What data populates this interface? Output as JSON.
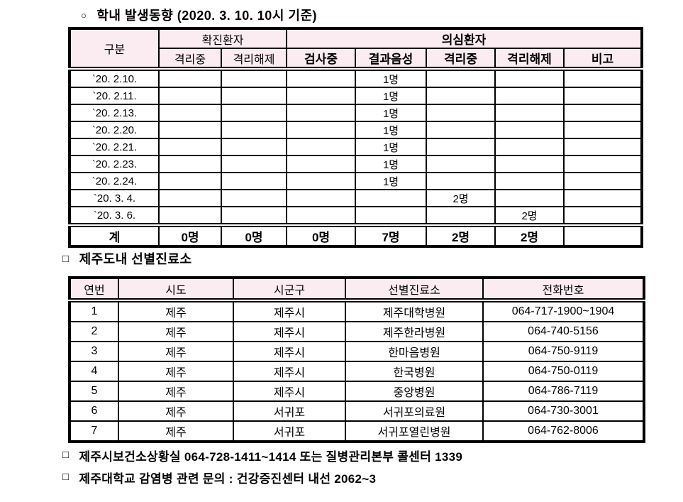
{
  "document": {
    "colors": {
      "header_bg": "#fbecf2",
      "border": "#000000",
      "text": "#000000",
      "page_bg": "#ffffff"
    },
    "section1": {
      "bullet": "○",
      "title": "학내 발생동향 (2020. 3. 10. 10시 기준)",
      "table": {
        "header": {
          "gubun": "구분",
          "confirmed_group": "확진환자",
          "suspected_group": "의심환자",
          "sub_headers": [
            "격리중",
            "격리해제",
            "검사중",
            "결과음성",
            "격리중",
            "격리해제",
            "비고"
          ]
        },
        "rows": [
          {
            "date": "`20. 2.10.",
            "cells": [
              "",
              "",
              "",
              "1명",
              "",
              "",
              ""
            ]
          },
          {
            "date": "`20. 2.11.",
            "cells": [
              "",
              "",
              "",
              "1명",
              "",
              "",
              ""
            ]
          },
          {
            "date": "`20. 2.13.",
            "cells": [
              "",
              "",
              "",
              "1명",
              "",
              "",
              ""
            ]
          },
          {
            "date": "`20. 2.20.",
            "cells": [
              "",
              "",
              "",
              "1명",
              "",
              "",
              ""
            ]
          },
          {
            "date": "`20. 2.21.",
            "cells": [
              "",
              "",
              "",
              "1명",
              "",
              "",
              ""
            ]
          },
          {
            "date": "`20. 2.23.",
            "cells": [
              "",
              "",
              "",
              "1명",
              "",
              "",
              ""
            ]
          },
          {
            "date": "`20. 2.24.",
            "cells": [
              "",
              "",
              "",
              "1명",
              "",
              "",
              ""
            ]
          },
          {
            "date": "`20. 3. 4.",
            "cells": [
              "",
              "",
              "",
              "",
              "2명",
              "",
              ""
            ]
          },
          {
            "date": "`20. 3. 6.",
            "cells": [
              "",
              "",
              "",
              "",
              "",
              "2명",
              ""
            ]
          }
        ],
        "total_row": {
          "label": "계",
          "cells": [
            "0명",
            "0명",
            "0명",
            "7명",
            "2명",
            "2명",
            ""
          ]
        }
      }
    },
    "section2": {
      "bullet": "□",
      "title": "제주도내 선별진료소",
      "table": {
        "headers": [
          "연번",
          "시도",
          "시군구",
          "선별진료소",
          "전화번호"
        ],
        "rows": [
          [
            "1",
            "제주",
            "제주시",
            "제주대학병원",
            "064-717-1900~1904"
          ],
          [
            "2",
            "제주",
            "제주시",
            "제주한라병원",
            "064-740-5156"
          ],
          [
            "3",
            "제주",
            "제주시",
            "한마음병원",
            "064-750-9119"
          ],
          [
            "4",
            "제주",
            "제주시",
            "한국병원",
            "064-750-0119"
          ],
          [
            "5",
            "제주",
            "제주시",
            "중앙병원",
            "064-786-7119"
          ],
          [
            "6",
            "제주",
            "서귀포",
            "서귀포의료원",
            "064-730-3001"
          ],
          [
            "7",
            "제주",
            "서귀포",
            "서귀포열린병원",
            "064-762-8006"
          ]
        ]
      }
    },
    "footnotes": [
      {
        "bullet": "□",
        "text": "제주시보건소상황실 064-728-1411~1414 또는 질병관리본부 콜센터 1339"
      },
      {
        "bullet": "□",
        "text": "제주대학교 감염병 관련 문의 : 건강증진센터 내선 2062~3"
      }
    ]
  }
}
